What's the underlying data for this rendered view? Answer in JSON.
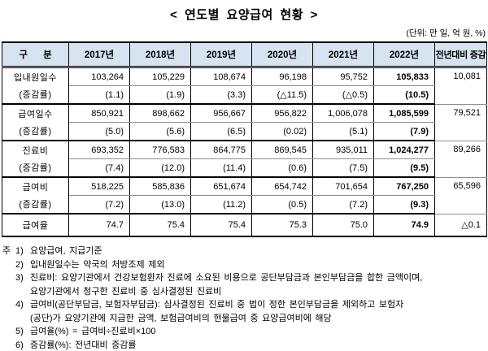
{
  "title": "< 연도별 요양급여 현황 >",
  "unit_note": "(단위: 만 일, 억 원, %)",
  "colors": {
    "header_bg": "#d6e3f0",
    "border_dark": "#000000",
    "border_light": "#8f8f8f"
  },
  "table": {
    "corner_header": "구      분",
    "year_headers": [
      "2017년",
      "2018년",
      "2019년",
      "2020년",
      "2021년",
      "2022년"
    ],
    "change_header": "전년대비 증감",
    "rate_label": "(증감률)",
    "groups": [
      {
        "label": "입내원일수",
        "values": [
          "103,264",
          "105,229",
          "108,674",
          "96,198",
          "95,752",
          "105,833"
        ],
        "rates": [
          "(1.1)",
          "(1.9)",
          "(3.3)",
          "(△11.5)",
          "(△0.5)",
          "(10.5)"
        ],
        "change": "10,081"
      },
      {
        "label": "급여일수",
        "values": [
          "850,921",
          "898,662",
          "956,667",
          "956,822",
          "1,006,078",
          "1,085,599"
        ],
        "rates": [
          "(5.0)",
          "(5.6)",
          "(6.5)",
          "(0.02)",
          "(5.1)",
          "(7.9)"
        ],
        "change": "79,521"
      },
      {
        "label": "진료비",
        "values": [
          "693,352",
          "776,583",
          "864,775",
          "869,545",
          "935,011",
          "1,024,277"
        ],
        "rates": [
          "(7.4)",
          "(12.0)",
          "(11.4)",
          "(0.6)",
          "(7.5)",
          "(9.5)"
        ],
        "change": "89,266"
      },
      {
        "label": "급여비",
        "values": [
          "518,225",
          "585,836",
          "651,674",
          "654,742",
          "701,654",
          "767,250"
        ],
        "rates": [
          "(7.2)",
          "(13.0)",
          "(11.2)",
          "(0.5)",
          "(7.2)",
          "(9.3)"
        ],
        "change": "65,596"
      }
    ],
    "summary_row": {
      "label": "급여율",
      "values": [
        "74.7",
        "75.4",
        "75.4",
        "75.3",
        "75.0",
        "74.9"
      ],
      "change": "△0.1"
    }
  },
  "footnotes": {
    "prefix": "주",
    "items": [
      {
        "num": "1)",
        "lines": [
          "요양급여, 지급기준"
        ]
      },
      {
        "num": "2)",
        "lines": [
          "입내원일수는 약국의 처방조제 제외"
        ]
      },
      {
        "num": "3)",
        "lines": [
          "진료비: 요양기관에서 건강보험환자 진료에 소요된 비용으로 공단부담금과 본인부담금을 합한 금액이며,",
          "요양기관에서 청구한 진료비 중 심사결정된 진료비"
        ]
      },
      {
        "num": "4)",
        "lines": [
          "급여비(공단부담금, 보험자부담금): 심사결정된 진료비 중 법이 정한 본인부담금을 제외하고 보험자",
          "(공단)가 요양기관에 지급한 금액, 보험급여비의 현물급여 중 요양급여비에 해당"
        ]
      },
      {
        "num": "5)",
        "lines": [
          "급여율(%) = 급여비÷진료비×100"
        ]
      },
      {
        "num": "6)",
        "lines": [
          "증감률(%): 전년대비 증감률"
        ]
      }
    ]
  }
}
